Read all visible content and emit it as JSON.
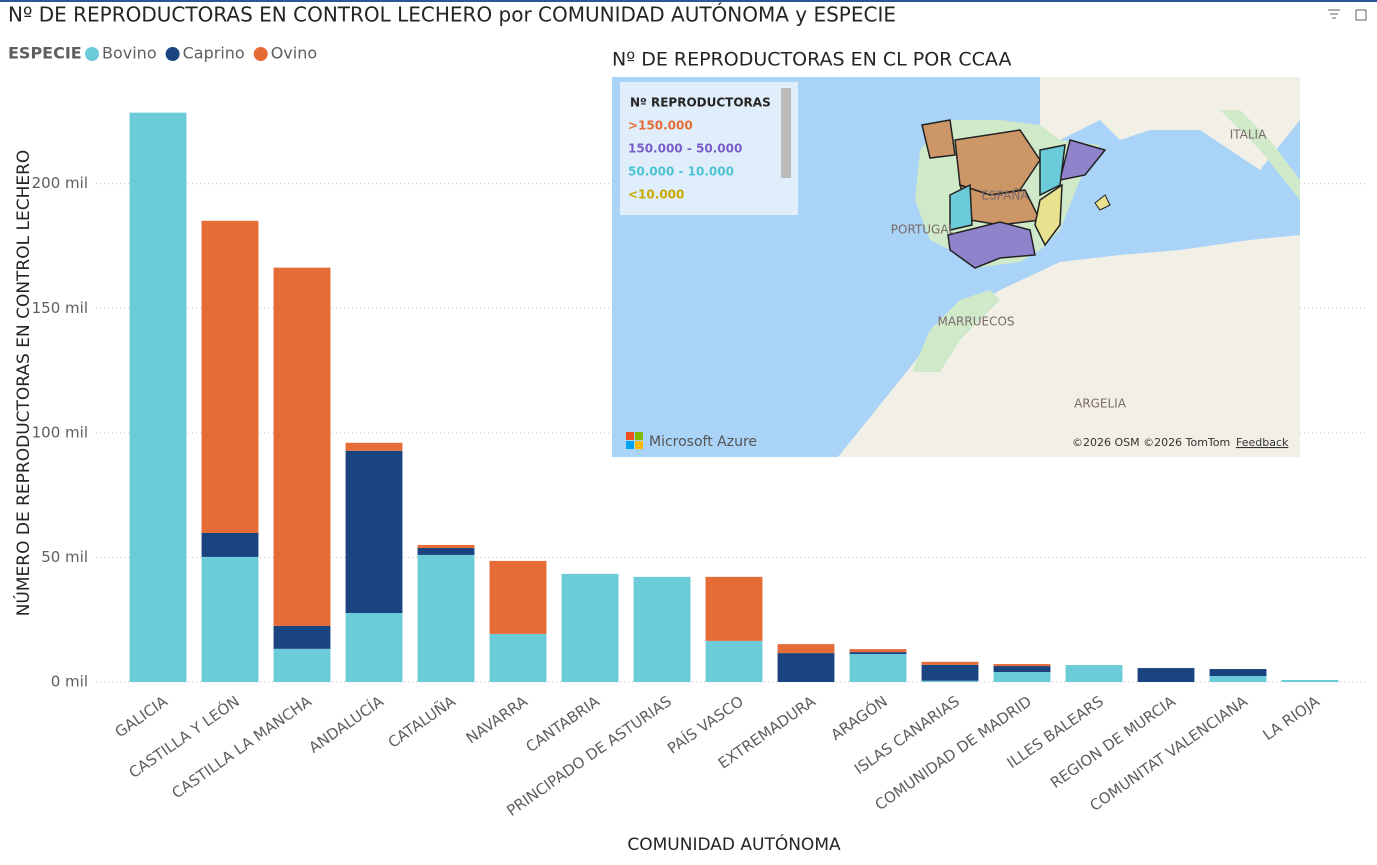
{
  "chart_data": {
    "type": "stacked_bar",
    "title": "Nº DE REPRODUCTORAS EN CONTROL LECHERO por COMUNIDAD AUTÓNOMA y ESPECIE",
    "legend_title": "ESPECIE",
    "x_label": "COMUNIDAD AUTÓNOMA",
    "y_label": "NÚMERO DE REPRODUCTORAS EN CONTROL LECHERO",
    "categories": [
      "GALICIA",
      "CASTILLA Y LEÓN",
      "CASTILLA LA MANCHA",
      "ANDALUCÍA",
      "CATALUÑA",
      "NAVARRA",
      "CANTABRIA",
      "PRINCIPADO DE ASTURIAS",
      "PAÍS VASCO",
      "EXTREMADURA",
      "ARAGÓN",
      "ISLAS CANARIAS",
      "COMUNIDAD DE MADRID",
      "ILLES BALEARS",
      "REGION DE MURCIA",
      "COMUNITAT VALENCIANA",
      "LA RIOJA"
    ],
    "series": [
      {
        "name": "Bovino",
        "color": "#6ccbd8",
        "values": [
          228500,
          50200,
          13300,
          27700,
          51000,
          19300,
          43400,
          42200,
          16500,
          0,
          11200,
          500,
          4000,
          6800,
          0,
          2400,
          800
        ]
      },
      {
        "name": "Caprino",
        "color": "#1a4480",
        "values": [
          0,
          9600,
          9200,
          65100,
          2800,
          0,
          0,
          0,
          0,
          11600,
          800,
          6400,
          2400,
          0,
          5600,
          2800,
          0
        ]
      },
      {
        "name": "Ovino",
        "color": "#e66c37",
        "values": [
          0,
          125300,
          143800,
          3200,
          1200,
          29300,
          0,
          0,
          25700,
          3600,
          1200,
          1200,
          800,
          0,
          0,
          0,
          0
        ]
      }
    ],
    "ylim": [
      0,
      240000
    ],
    "yticks": [
      {
        "value": 0,
        "label": "0 mil"
      },
      {
        "value": 50000,
        "label": "50 mil"
      },
      {
        "value": 100000,
        "label": "100 mil"
      },
      {
        "value": 150000,
        "label": "150 mil"
      },
      {
        "value": 200000,
        "label": "200 mil"
      }
    ],
    "grid": true
  },
  "map": {
    "title": "Nº DE REPRODUCTORAS EN CL POR CCAA",
    "legend_title": "Nº REPRODUCTORAS",
    "legend_items": [
      {
        "label": ">150.000",
        "color": "#e66c37"
      },
      {
        "label": "150.000 - 50.000",
        "color": "#7a5cc8"
      },
      {
        "label": "50.000 - 10.000",
        "color": "#4dc3d3"
      },
      {
        "label": "<10.000",
        "color": "#c9a800"
      }
    ],
    "places": [
      "ITALIA",
      "ESPAÑA",
      "PORTUGAL",
      "MARRUECOS",
      "ARGELIA"
    ],
    "brand": "Microsoft Azure",
    "attribution": "©2026 OSM  ©2026 TomTom",
    "feedback": "Feedback"
  }
}
